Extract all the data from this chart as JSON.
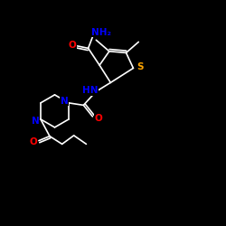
{
  "background_color": "#000000",
  "bond_color": "#ffffff",
  "figsize": [
    2.5,
    2.5
  ],
  "dpi": 100,
  "xlim": [
    0.0,
    1.0
  ],
  "ylim": [
    0.0,
    1.0
  ]
}
